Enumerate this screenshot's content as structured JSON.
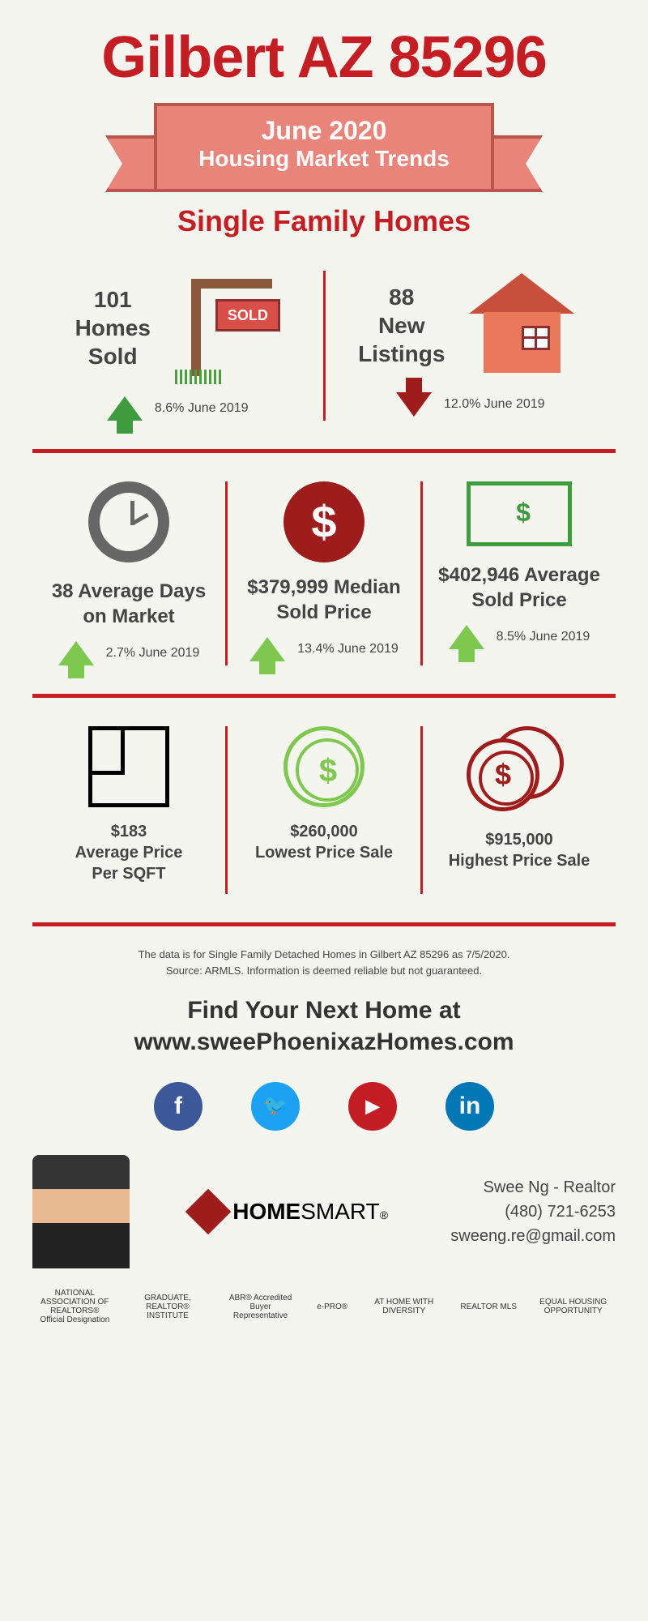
{
  "title": "Gilbert AZ 85296",
  "ribbon": {
    "line1": "June 2020",
    "line2": "Housing Market Trends"
  },
  "subtitle": "Single Family Homes",
  "colors": {
    "primary_red": "#c41e24",
    "salmon": "#e9847a",
    "dark_green": "#3e9b3e",
    "light_green": "#7ec850",
    "dark_red": "#9e1c1c",
    "gray": "#666666",
    "text": "#444444",
    "bg": "#f5f5f0"
  },
  "row1": {
    "left": {
      "stat_value": "101",
      "stat_label1": "Homes",
      "stat_label2": "Sold",
      "direction": "up",
      "arrow_color": "#3e9b3e",
      "compare": "8.6% June 2019",
      "icon": "sold-sign"
    },
    "right": {
      "stat_value": "88",
      "stat_label1": "New",
      "stat_label2": "Listings",
      "direction": "down",
      "arrow_color": "#9e1c1c",
      "compare": "12.0% June 2019",
      "icon": "house"
    }
  },
  "row2": {
    "a": {
      "icon": "clock",
      "stat": "38 Average Days on Market",
      "direction": "up",
      "arrow_color": "#7ec850",
      "compare": "2.7% June 2019"
    },
    "b": {
      "icon": "coin-red",
      "stat": "$379,999 Median Sold Price",
      "direction": "up",
      "arrow_color": "#7ec850",
      "compare": "13.4% June 2019"
    },
    "c": {
      "icon": "bill",
      "stat": "$402,946 Average Sold Price",
      "direction": "up",
      "arrow_color": "#7ec850",
      "compare": "8.5% June 2019"
    }
  },
  "row3": {
    "a": {
      "icon": "floorplan",
      "value": "$183",
      "label1": "Average Price",
      "label2": "Per SQFT"
    },
    "b": {
      "icon": "coin-green-circle",
      "value": "$260,000",
      "label1": "Lowest Price Sale",
      "label2": ""
    },
    "c": {
      "icon": "coins-red",
      "value": "$915,000",
      "label1": "Highest Price Sale",
      "label2": ""
    }
  },
  "footnote": {
    "line1": "The data is for Single Family Detached Homes in Gilbert AZ 85296 as 7/5/2020.",
    "line2": "Source: ARMLS. Information is deemed reliable but not guaranteed."
  },
  "cta": {
    "line1": "Find Your Next Home at",
    "line2": "www.sweePhoenixazHomes.com"
  },
  "socials": {
    "facebook": {
      "color": "#3b5998",
      "glyph": "f"
    },
    "twitter": {
      "color": "#1da1f2",
      "glyph": "🐦"
    },
    "youtube": {
      "color": "#c41e24",
      "glyph": "▶"
    },
    "linkedin": {
      "color": "#0077b5",
      "glyph": "in"
    }
  },
  "brand": {
    "name_bold": "HOME",
    "name_light": "SMART"
  },
  "contact": {
    "name": "Swee Ng - Realtor",
    "phone": "(480) 721-6253",
    "email": "sweeng.re@gmail.com"
  },
  "footer_logos": [
    "NATIONAL ASSOCIATION OF REALTORS® Official Designation",
    "GRADUATE, REALTOR® INSTITUTE",
    "ABR® Accredited Buyer Representative",
    "e-PRO®",
    "AT HOME WITH DIVERSITY",
    "REALTOR MLS",
    "EQUAL HOUSING OPPORTUNITY"
  ]
}
